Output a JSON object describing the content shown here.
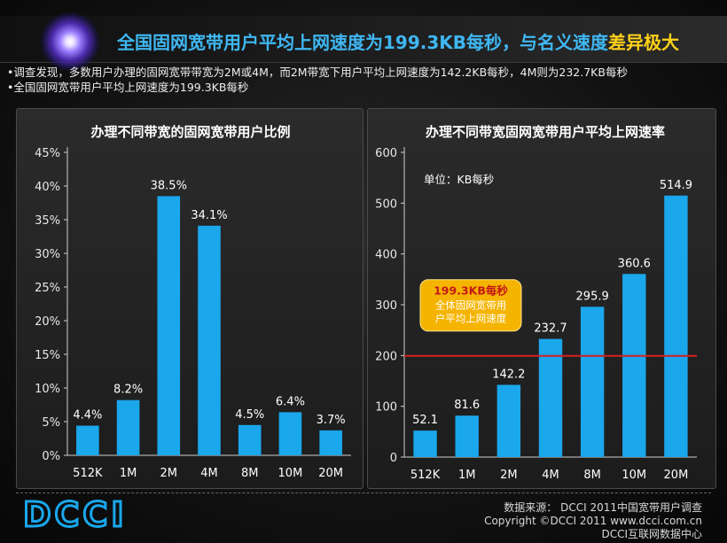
{
  "header": {
    "headline_main": "全国固网宽带用户平均上网速度为199.3KB每秒，与名义速度",
    "headline_highlight": "差异极大"
  },
  "bullets": [
    "•调查发现，多数用户办理的固网宽带带宽为2M或4M，而2M带宽下用户平均上网速度为142.2KB每秒，4M则为232.7KB每秒",
    "•全国固网宽带用户平均上网速度为199.3KB每秒"
  ],
  "chart_data": [
    {
      "type": "bar",
      "title": "办理不同带宽的固网宽带用户比例",
      "categories": [
        "512K",
        "1M",
        "2M",
        "4M",
        "8M",
        "10M",
        "20M"
      ],
      "values": [
        4.4,
        8.2,
        38.5,
        34.1,
        4.5,
        6.4,
        3.7
      ],
      "value_labels": [
        "4.4%",
        "8.2%",
        "38.5%",
        "34.1%",
        "4.5%",
        "6.4%",
        "3.7%"
      ],
      "ylim": [
        0,
        45
      ],
      "yticks": [
        "0%",
        "5%",
        "10%",
        "15%",
        "20%",
        "25%",
        "30%",
        "35%",
        "40%",
        "45%"
      ],
      "grid": false,
      "bar_color": "#1aa7ec"
    },
    {
      "type": "bar",
      "title": "办理不同带宽固网宽带用户平均上网速率",
      "categories": [
        "512K",
        "1M",
        "2M",
        "4M",
        "8M",
        "10M",
        "20M"
      ],
      "values": [
        52.1,
        81.6,
        142.2,
        232.7,
        295.9,
        360.6,
        514.9
      ],
      "value_labels": [
        "52.1",
        "81.6",
        "142.2",
        "232.7",
        "295.9",
        "360.6",
        "514.9"
      ],
      "ylim": [
        0,
        600
      ],
      "yticks": [
        "0",
        "100",
        "200",
        "300",
        "400",
        "500",
        "600"
      ],
      "unit_note": "单位：KB每秒",
      "reference_line": {
        "value": 199.3,
        "label_value": "199.3KB每秒",
        "label_text_1": "全体固网宽带用",
        "label_text_2": "户平均上网速度",
        "color": "#d42020"
      },
      "grid": false,
      "bar_color": "#1aa7ec"
    }
  ],
  "footer": {
    "logo_text": "DCCI",
    "source_line1": "数据来源： DCCI 2011中国宽带用户调查",
    "source_line2": "Copyright ©DCCI 2011 www.dcci.com.cn",
    "source_line3": "DCCI互联网数据中心"
  },
  "colors": {
    "accent": "#3fb7f2",
    "highlight": "#ffd21a",
    "bar": "#1aa7ec",
    "reference": "#d42020",
    "callout": "#f5b400"
  }
}
